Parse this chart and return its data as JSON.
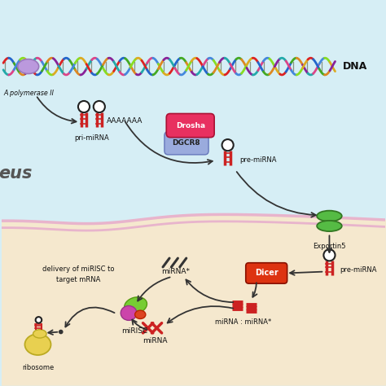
{
  "background_nucleus": "#d6eef5",
  "background_cytoplasm": "#f5e8ce",
  "nucleus_boundary_color": "#e8b4cc",
  "dna_label": "DNA",
  "polymerase_label": "A polymerase II",
  "nucleus_label": "eus",
  "pri_mirna_label": "pri-miRNA",
  "pre_mirna_label1": "pre-miRNA",
  "pre_mirna_label2": "pre-miRNA",
  "drosha_label": "Drosha",
  "dgcr8_label": "DGCR8",
  "exportin5_label": "Exportin5",
  "dicer_label": "Dicer",
  "mirna_star_label": "miRNA*",
  "mirna_duplex_label": "miRNA : miRNA*",
  "mirna_label": "miRNA",
  "mirisc_label": "miRISC",
  "ribosome_label": "ribosome",
  "delivery_label": "delivery of miRISC to\ntarget mRNA",
  "aaaa_label": "AAAAAAA",
  "drosha_color": "#e83060",
  "dgcr8_color": "#9aabdd",
  "exportin5_color": "#55bb44",
  "dicer_color": "#dd3311",
  "ribosome_color": "#e8d050",
  "stem_color": "#cc2222",
  "arrow_color": "#333333",
  "text_color": "#111111"
}
